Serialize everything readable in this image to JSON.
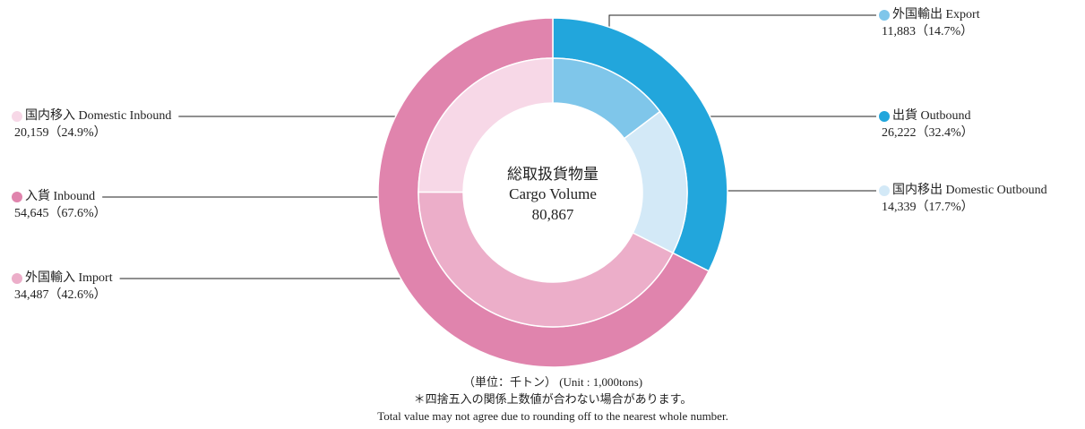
{
  "chart_data": {
    "type": "donut",
    "center_label": [
      "総取扱貨物量",
      "Cargo Volume"
    ],
    "total": 80867,
    "total_label": "80,867",
    "rings": [
      {
        "categories": [
          "出貨 Outbound",
          "入貨 Inbound"
        ],
        "values": [
          26222,
          54645
        ],
        "value_labels": [
          "26,222（32.4%）",
          "54,645（67.6%）"
        ],
        "colors": [
          "#22a6dc",
          "#e084ad"
        ]
      },
      {
        "categories": [
          "外国輸出 Export",
          "国内移出 Domestic Outbound",
          "外国輸入 Import",
          "国内移入 Domestic Inbound"
        ],
        "values": [
          11883,
          14339,
          34487,
          20159
        ],
        "value_labels": [
          "11,883（14.7%）",
          "14,339（17.7%）",
          "34,487（42.6%）",
          "20,159（24.9%）"
        ],
        "colors": [
          "#7fc6ea",
          "#d3e9f7",
          "#ecaec9",
          "#f7d8e7"
        ]
      }
    ],
    "notes": [
      "（単位：千トン） (Unit : 1,000tons)",
      "＊四捨五入の関係上数値が合わない場合があります。",
      "Total value may not agree due to rounding off to the nearest whole number."
    ]
  }
}
